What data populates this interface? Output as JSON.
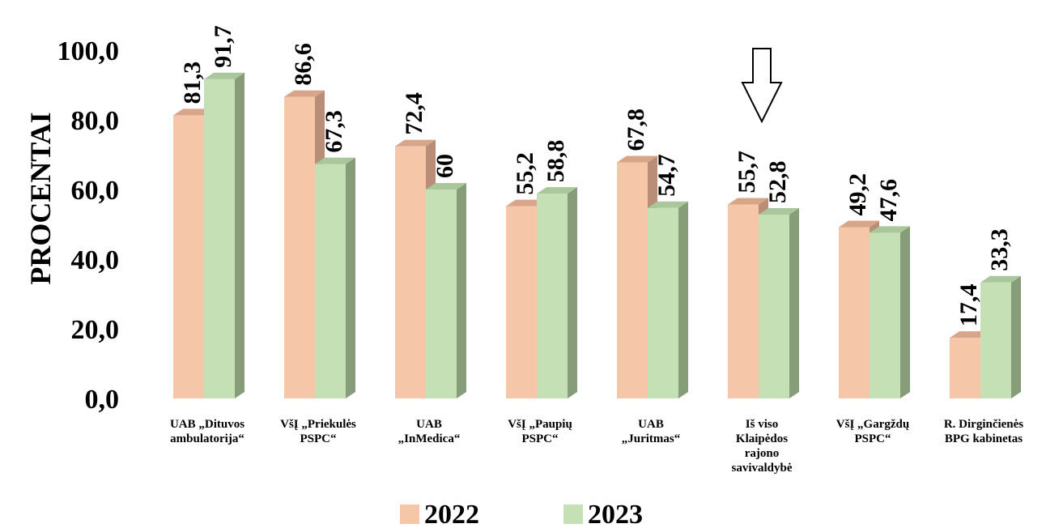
{
  "chart_data": {
    "type": "bar",
    "title": "",
    "ylabel": "PROCENTAI",
    "xlabel": "",
    "ylim": [
      0,
      100
    ],
    "yticks": [
      "0,0",
      "20,0",
      "40,0",
      "60,0",
      "80,0",
      "100,0"
    ],
    "grid": false,
    "legend_position": "bottom",
    "categories": [
      [
        "UAB „Dituvos",
        "ambulatorija“"
      ],
      [
        "VšĮ „Priekulės",
        "PSPC“"
      ],
      [
        "UAB",
        "„InMedica“"
      ],
      [
        "VšĮ „Paupių",
        "PSPC“"
      ],
      [
        "UAB",
        "„Juritmas“"
      ],
      [
        "Iš viso",
        "Klaipėdos",
        "rajono",
        "savivaldybė"
      ],
      [
        "VšĮ „Gargždų",
        "PSPC“"
      ],
      [
        "R. Dirginčienės",
        "BPG kabinetas"
      ]
    ],
    "series": [
      {
        "name": "2022",
        "color": "#f5c6a8",
        "side_color": "#b88e76",
        "top_color": "#d9a58a",
        "values": [
          81.3,
          86.6,
          72.4,
          55.2,
          67.8,
          55.7,
          49.2,
          17.4
        ],
        "labels": [
          "81,3",
          "86,6",
          "72,4",
          "55,2",
          "67,8",
          "55,7",
          "49,2",
          "17,4"
        ]
      },
      {
        "name": "2023",
        "color": "#c5e0b4",
        "side_color": "#879c78",
        "top_color": "#a9c79a",
        "values": [
          91.7,
          67.3,
          60,
          58.8,
          54.7,
          52.8,
          47.6,
          33.3
        ],
        "labels": [
          "91,7",
          "67,3",
          "60",
          "58,8",
          "54,7",
          "52,8",
          "47,6",
          "33,3"
        ]
      }
    ],
    "annotations": [
      {
        "type": "arrow-down",
        "category_index": 5
      }
    ]
  }
}
